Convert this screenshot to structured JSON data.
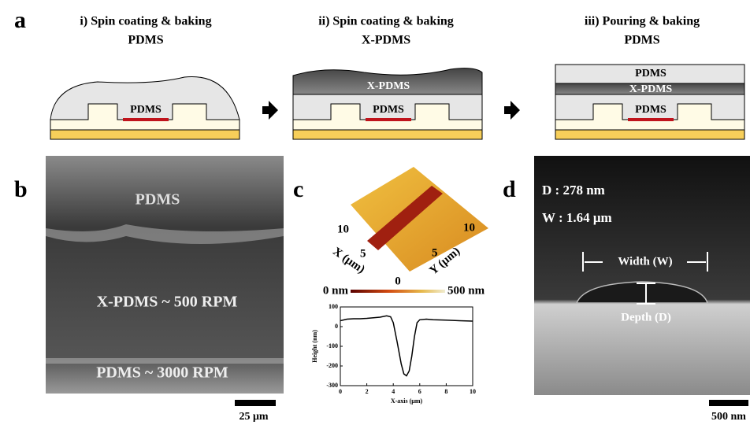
{
  "panels": {
    "a": {
      "label": "a",
      "steps": [
        {
          "title": "i) Spin coating & baking",
          "subtitle": "PDMS",
          "layers": [
            "PDMS"
          ]
        },
        {
          "title": "ii) Spin coating & baking",
          "subtitle": "X-PDMS",
          "layers": [
            "PDMS",
            "X-PDMS"
          ]
        },
        {
          "title": "iii) Pouring & baking",
          "subtitle": "PDMS",
          "layers": [
            "PDMS",
            "X-PDMS",
            "PDMS"
          ]
        }
      ]
    },
    "b": {
      "label": "b",
      "texts": [
        "PDMS",
        "X-PDMS ~ 500 RPM",
        "PDMS ~ 3000 RPM"
      ],
      "scale_bar": "25 μm"
    },
    "c": {
      "label": "c",
      "surface_labels": {
        "x_axis": "X (μm)",
        "y_axis": "Y (μm)",
        "x_ticks": [
          "10",
          "5"
        ],
        "y_ticks": [
          "10",
          "5"
        ],
        "origin": "0"
      },
      "colorbar": {
        "min": "0 nm",
        "max": "500 nm"
      },
      "profile": {
        "x_label": "X-axis (μm)",
        "y_label": "Height (nm)",
        "xlim": [
          0,
          10
        ],
        "ylim": [
          -300,
          100
        ],
        "xticks": [
          0,
          2,
          4,
          6,
          8,
          10
        ],
        "yticks": [
          -300,
          -200,
          -100,
          0,
          100
        ],
        "x": [
          0,
          0.5,
          1,
          1.5,
          2,
          2.5,
          3,
          3.5,
          3.8,
          4,
          4.3,
          4.6,
          4.8,
          5,
          5.2,
          5.4,
          5.6,
          5.8,
          6,
          6.5,
          7,
          8,
          9,
          10
        ],
        "y": [
          30,
          38,
          40,
          40,
          42,
          45,
          48,
          55,
          50,
          20,
          -80,
          -190,
          -240,
          -250,
          -225,
          -150,
          -50,
          20,
          35,
          38,
          35,
          33,
          30,
          28
        ]
      }
    },
    "d": {
      "label": "d",
      "depth": "D : 278 nm",
      "width": "W : 1.64 μm",
      "width_label": "Width (W)",
      "depth_label": "Depth (D)",
      "scale_bar": "500 nm"
    }
  }
}
